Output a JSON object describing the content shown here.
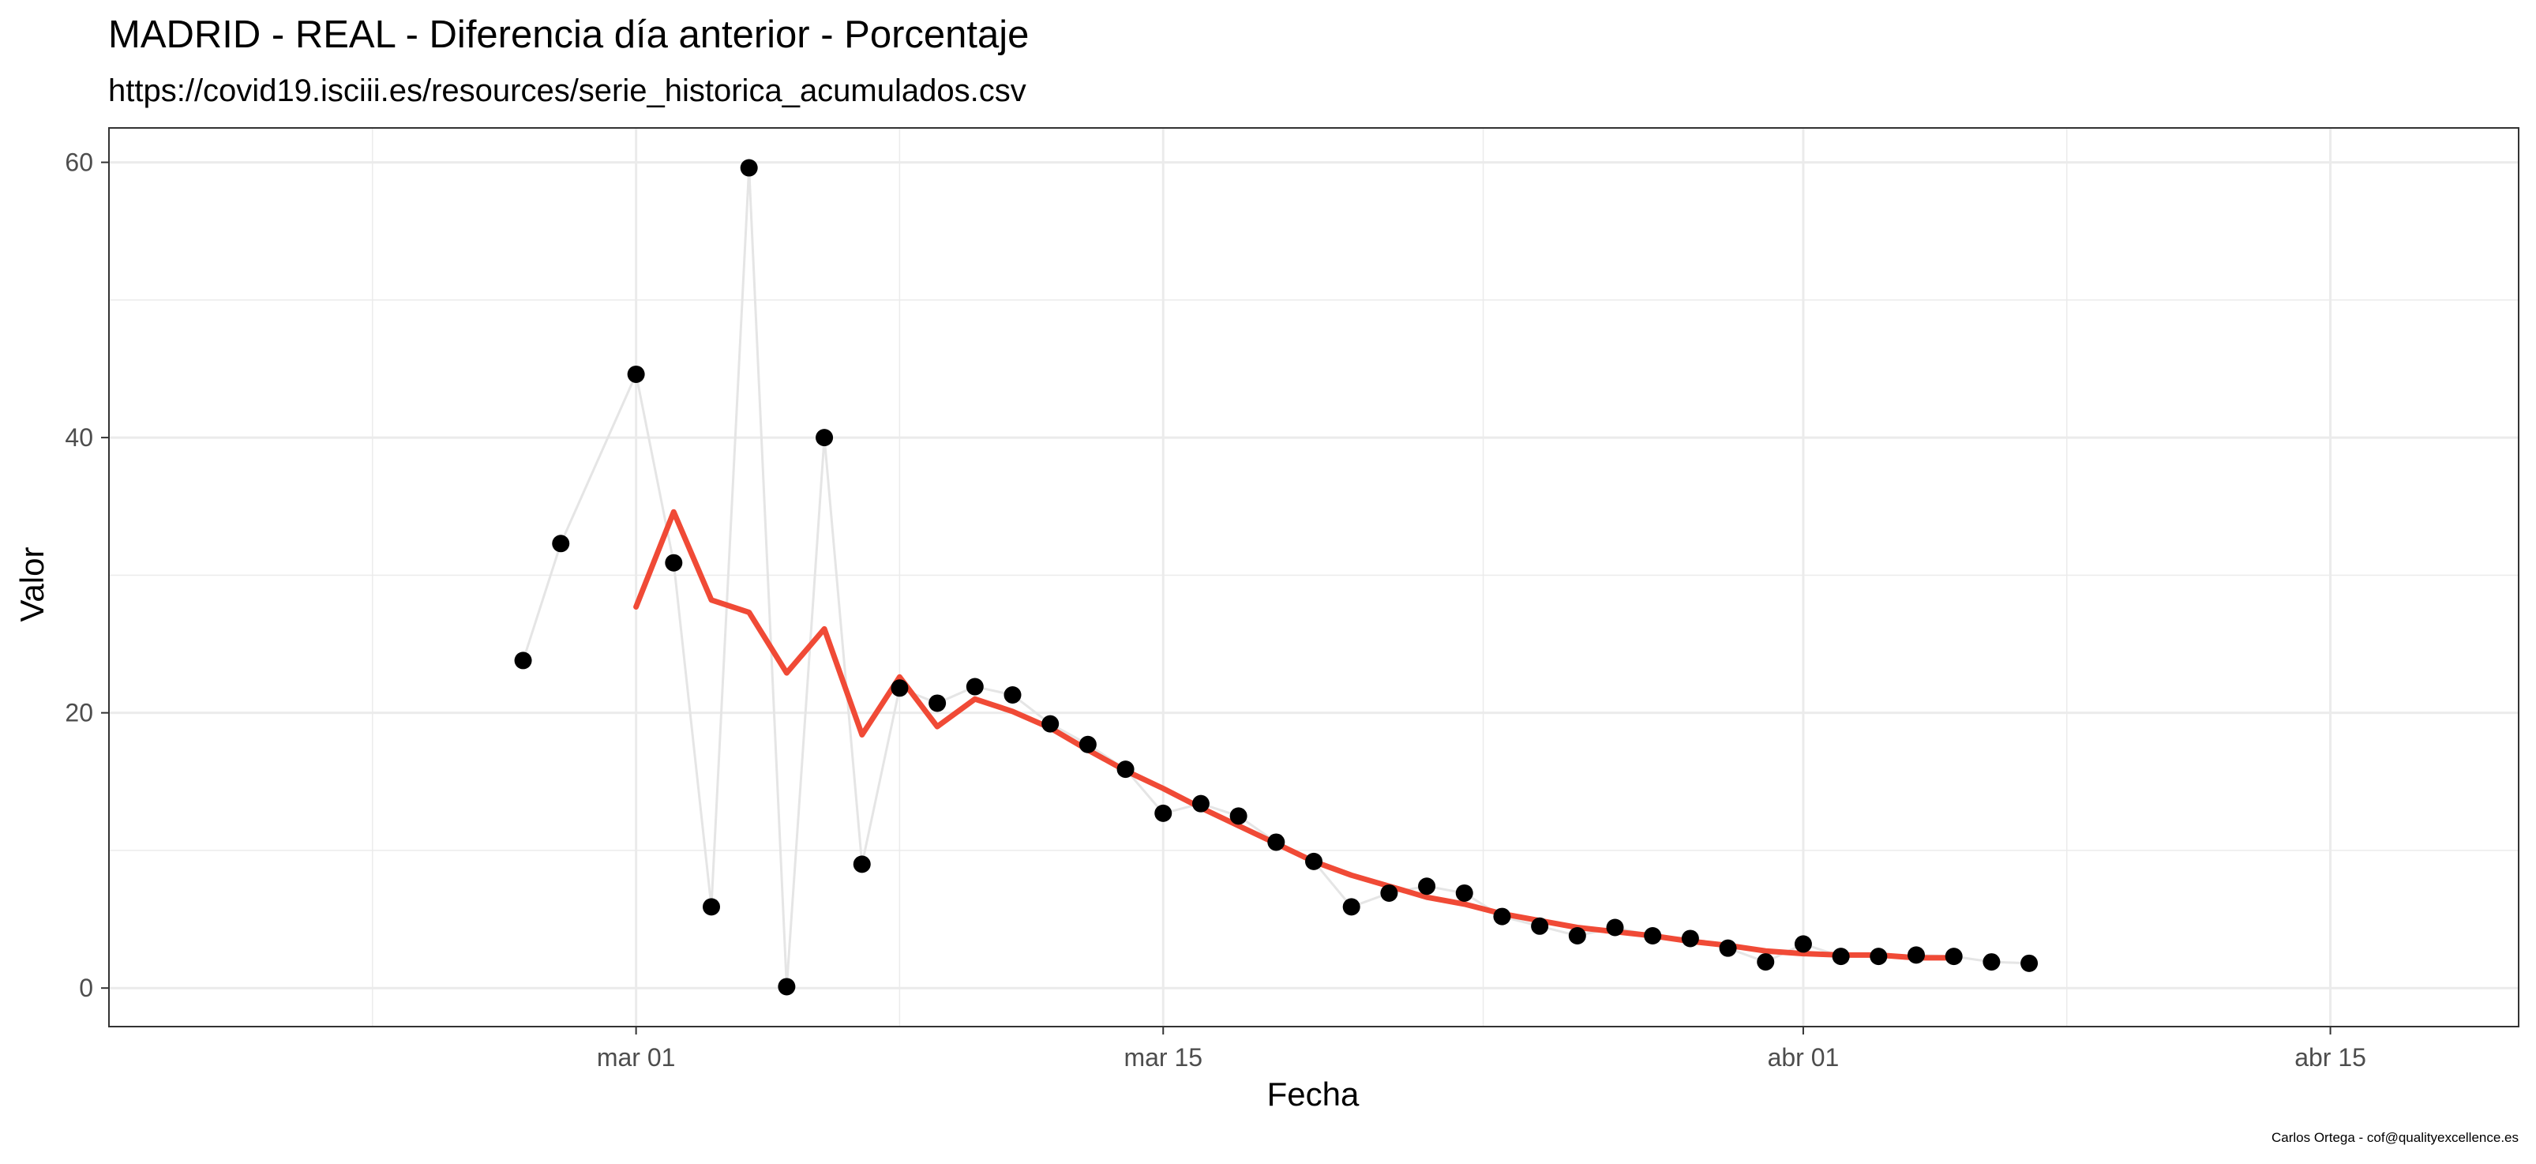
{
  "chart_data": {
    "type": "line",
    "title": "MADRID - REAL - Diferencia día anterior - Porcentaje",
    "subtitle": "https://covid19.isciii.es/resources/serie_historica_acumulados.csv",
    "xlabel": "Fecha",
    "ylabel": "Valor",
    "caption": "Carlos Ortega - cof@qualityexcellence.es",
    "x_ticks": [
      {
        "date": "2020-03-01",
        "label": "mar 01"
      },
      {
        "date": "2020-03-15",
        "label": "mar 15"
      },
      {
        "date": "2020-04-01",
        "label": "abr 01"
      },
      {
        "date": "2020-04-15",
        "label": "abr 15"
      }
    ],
    "y_ticks": [
      0,
      20,
      40,
      60
    ],
    "xlim": [
      "2020-02-16",
      "2020-04-20"
    ],
    "ylim": [
      -2.8,
      62.5
    ],
    "grid": true,
    "legend": "none",
    "colors": {
      "points": "#000000",
      "raw_line": "#e5e5e5",
      "smooth_line": "#f04a36",
      "panel_border": "#333333",
      "grid": "#ebebeb"
    },
    "series": [
      {
        "kind": "points",
        "x": [
          "2020-02-27",
          "2020-02-28",
          "2020-02-29",
          "2020-03-01",
          "2020-03-02",
          "2020-03-03",
          "2020-03-04",
          "2020-03-05",
          "2020-03-06",
          "2020-03-07",
          "2020-03-08",
          "2020-03-09",
          "2020-03-10",
          "2020-03-11",
          "2020-03-12",
          "2020-03-13",
          "2020-03-14",
          "2020-03-15",
          "2020-03-16",
          "2020-03-17",
          "2020-03-18",
          "2020-03-19",
          "2020-03-20",
          "2020-03-21",
          "2020-03-22",
          "2020-03-23",
          "2020-03-24",
          "2020-03-25",
          "2020-03-26",
          "2020-03-27",
          "2020-03-28",
          "2020-03-29",
          "2020-03-30",
          "2020-03-31",
          "2020-04-01",
          "2020-04-02",
          "2020-04-03",
          "2020-04-04",
          "2020-04-05",
          "2020-04-06",
          "2020-04-07"
        ],
        "values": [
          23.8,
          32.3,
          null,
          44.6,
          30.9,
          5.9,
          59.6,
          0.1,
          40.0,
          9.0,
          21.8,
          20.7,
          21.9,
          21.3,
          19.2,
          17.7,
          15.9,
          12.7,
          13.4,
          12.5,
          10.6,
          9.2,
          5.9,
          6.9,
          7.4,
          6.9,
          5.2,
          4.5,
          3.8,
          4.4,
          3.8,
          3.6,
          2.9,
          1.9,
          3.2,
          2.3,
          2.3,
          2.4,
          2.3,
          1.9,
          1.8
        ]
      },
      {
        "kind": "smooth",
        "x": [
          "2020-03-01",
          "2020-03-02",
          "2020-03-03",
          "2020-03-04",
          "2020-03-05",
          "2020-03-06",
          "2020-03-07",
          "2020-03-08",
          "2020-03-09",
          "2020-03-10",
          "2020-03-11",
          "2020-03-12",
          "2020-03-13",
          "2020-03-14",
          "2020-03-15",
          "2020-03-16",
          "2020-03-17",
          "2020-03-18",
          "2020-03-19",
          "2020-03-20",
          "2020-03-21",
          "2020-03-22",
          "2020-03-23",
          "2020-03-24",
          "2020-03-25",
          "2020-03-26",
          "2020-03-27",
          "2020-03-28",
          "2020-03-29",
          "2020-03-30",
          "2020-03-31",
          "2020-04-01",
          "2020-04-02",
          "2020-04-03",
          "2020-04-04",
          "2020-04-05"
        ],
        "values": [
          27.7,
          34.6,
          28.2,
          27.3,
          22.9,
          26.1,
          18.4,
          22.6,
          19.0,
          21.0,
          20.1,
          18.9,
          17.3,
          15.8,
          14.5,
          13.1,
          11.8,
          10.5,
          9.2,
          8.2,
          7.4,
          6.6,
          6.1,
          5.4,
          4.9,
          4.4,
          4.1,
          3.8,
          3.4,
          3.1,
          2.7,
          2.5,
          2.4,
          2.4,
          2.2,
          2.2
        ]
      }
    ]
  }
}
